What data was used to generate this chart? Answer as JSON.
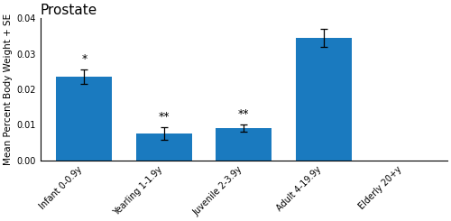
{
  "title": "Prostate",
  "ylabel": "Mean Percent Body Weight + SE",
  "categories": [
    "Infant 0-0.9y",
    "Yearling 1-1.9y",
    "Juvenile 2-3.9y",
    "Adult 4-19.9y",
    "Elderly 20+y"
  ],
  "values": [
    0.0235,
    0.0075,
    0.009,
    0.0345,
    0.0
  ],
  "errors": [
    0.002,
    0.0018,
    0.001,
    0.0025,
    0.0
  ],
  "bar_color": "#1a7abf",
  "annotations": [
    "*",
    "**",
    "**",
    "",
    ""
  ],
  "ylim": [
    0,
    0.04
  ],
  "yticks": [
    0.0,
    0.01,
    0.02,
    0.03,
    0.04
  ],
  "figsize": [
    5.0,
    2.45
  ],
  "dpi": 100,
  "title_fontsize": 11,
  "label_fontsize": 7.5,
  "tick_fontsize": 7,
  "annot_fontsize": 9
}
